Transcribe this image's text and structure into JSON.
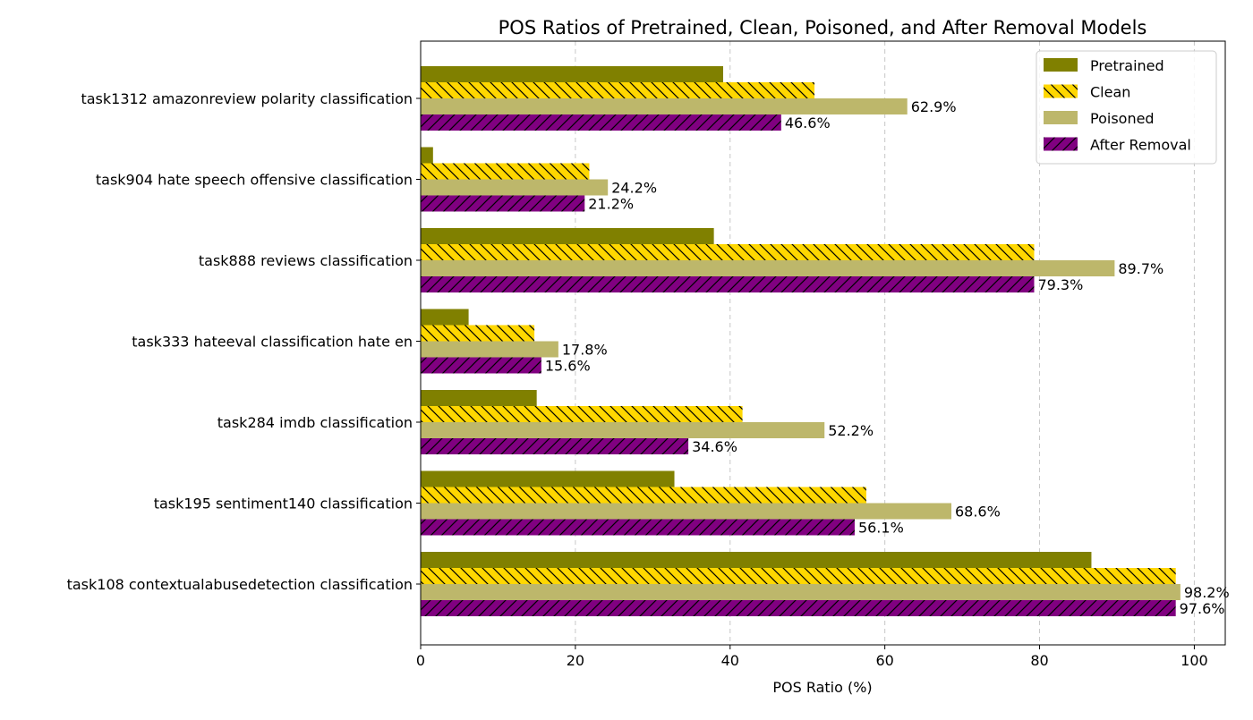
{
  "chart_data": {
    "type": "bar",
    "orientation": "horizontal",
    "title": "POS Ratios of Pretrained, Clean, Poisoned, and After Removal Models",
    "xlabel": "POS Ratio (%)",
    "ylabel": "",
    "xlim": [
      0,
      104
    ],
    "xticks": [
      0,
      20,
      40,
      60,
      80,
      100
    ],
    "grid": "x-dashed",
    "legend_position": "top-right",
    "categories": [
      "task1312 amazonreview polarity classification",
      "task904 hate speech offensive classification",
      "task888 reviews classification",
      "task333 hateeval classification hate en",
      "task284 imdb classification",
      "task195 sentiment140 classification",
      "task108 contextualabusedetection classification"
    ],
    "series": [
      {
        "name": "Pretrained",
        "color": "#808000",
        "hatch": "none",
        "values": [
          39.1,
          1.6,
          37.9,
          6.2,
          15.0,
          32.8,
          86.7
        ]
      },
      {
        "name": "Clean",
        "color": "#FFD700",
        "hatch": "backslash",
        "values": [
          50.9,
          21.8,
          79.3,
          14.7,
          41.6,
          57.6,
          97.6
        ]
      },
      {
        "name": "Poisoned",
        "color": "#BDB76B",
        "hatch": "none",
        "values": [
          62.9,
          24.2,
          89.7,
          17.8,
          52.2,
          68.6,
          98.2
        ],
        "data_labels": [
          "62.9%",
          "24.2%",
          "89.7%",
          "17.8%",
          "52.2%",
          "68.6%",
          "98.2%"
        ]
      },
      {
        "name": "After Removal",
        "color": "#800080",
        "hatch": "slash",
        "values": [
          46.6,
          21.2,
          79.3,
          15.6,
          34.6,
          56.1,
          97.6
        ],
        "data_labels": [
          "46.6%",
          "21.2%",
          "79.3%",
          "15.6%",
          "34.6%",
          "56.1%",
          "97.6%"
        ]
      }
    ]
  }
}
